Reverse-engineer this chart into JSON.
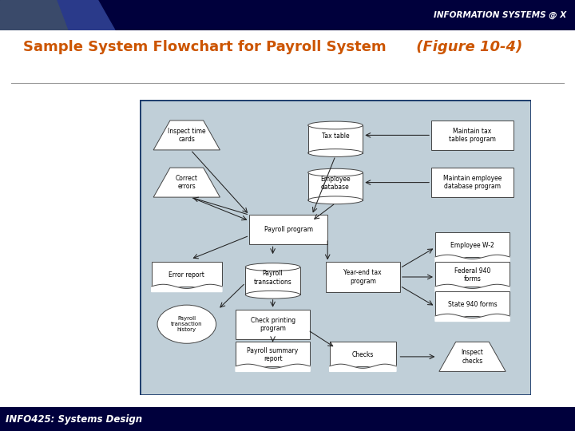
{
  "title_text": "Sample System Flowchart for Payroll System",
  "title_suffix": " (Figure 10-4)",
  "header_text": "INFORMATION SYSTEMS @ X",
  "footer_text": "INFO425: Systems Design",
  "header_bg": "#00003c",
  "footer_bg": "#00003c",
  "title_color": "#cc5500",
  "diagram_bg": "#c0cfd8",
  "diagram_border": "#1a3a6b",
  "slide_bg": "#ffffff"
}
